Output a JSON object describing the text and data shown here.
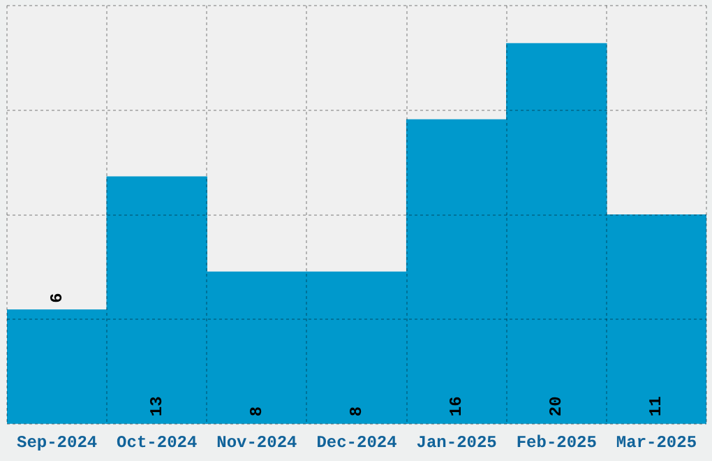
{
  "chart_data": {
    "type": "bar",
    "categories": [
      "Sep-2024",
      "Oct-2024",
      "Nov-2024",
      "Dec-2024",
      "Jan-2025",
      "Feb-2025",
      "Mar-2025"
    ],
    "values": [
      6,
      13,
      8,
      8,
      16,
      20,
      11
    ],
    "color": "#0099cc",
    "ylim": [
      0,
      22
    ],
    "yticks": [
      {
        "value": 0,
        "label": null
      },
      {
        "value": 5.5,
        "label": null
      },
      {
        "value": 11,
        "label": null
      },
      {
        "value": 16.5,
        "label": null
      },
      {
        "value": 22,
        "label": null
      }
    ],
    "tick_labels": "x",
    "grid": true,
    "data_labels": true
  }
}
